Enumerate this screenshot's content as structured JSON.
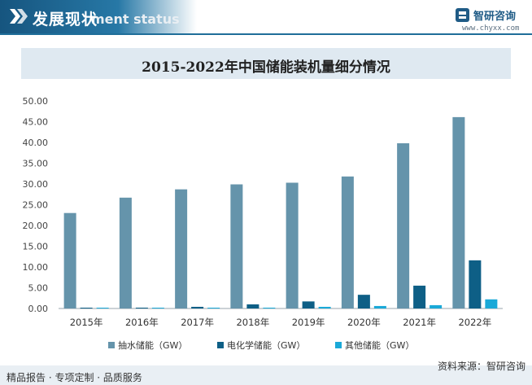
{
  "header": {
    "title": "发展现状",
    "subtitle_ghost": "ment status"
  },
  "brand": {
    "name": "智研咨询",
    "url": "www.chyxx.com"
  },
  "footer": {
    "left": "精品报告 · 专项定制 · 品质服务",
    "source": "资料来源：智研咨询"
  },
  "colors": {
    "pumped": "#6594ab",
    "electro": "#0e5f86",
    "other": "#1aa9d8",
    "header": "#16557f"
  },
  "chart_data": {
    "type": "bar",
    "title": "2015-2022年中国储能装机量细分情况",
    "categories": [
      "2015年",
      "2016年",
      "2017年",
      "2018年",
      "2019年",
      "2020年",
      "2021年",
      "2022年"
    ],
    "series": [
      {
        "name": "抽水储能（GW）",
        "values": [
          23.0,
          26.7,
          28.7,
          29.9,
          30.3,
          31.8,
          39.8,
          46.1
        ]
      },
      {
        "name": "电化学储能（GW）",
        "values": [
          0.1,
          0.2,
          0.4,
          1.0,
          1.7,
          3.3,
          5.5,
          11.6
        ]
      },
      {
        "name": "其他储能（GW）",
        "values": [
          0.1,
          0.1,
          0.1,
          0.2,
          0.4,
          0.6,
          0.8,
          2.2
        ]
      }
    ],
    "ylim": [
      0,
      50
    ],
    "yticks": [
      "0.00",
      "5.00",
      "10.00",
      "15.00",
      "20.00",
      "25.00",
      "30.00",
      "35.00",
      "40.00",
      "45.00",
      "50.00"
    ],
    "grid": false,
    "legend": "bottom"
  }
}
